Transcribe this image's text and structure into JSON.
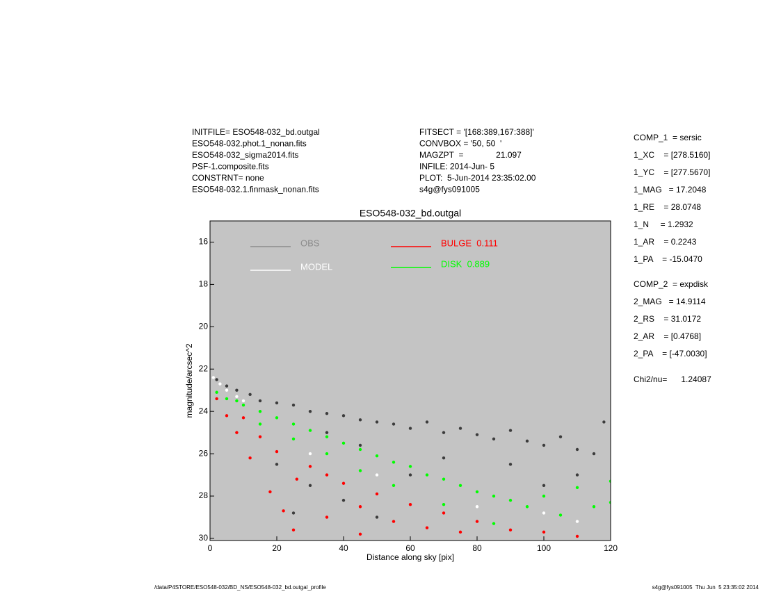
{
  "chart_data": {
    "type": "scatter",
    "title": "ESO548-032_bd.outgal",
    "xlabel": "Distance along sky [pix]",
    "ylabel": "magnitude/arcsec^2",
    "xlim": [
      0,
      120
    ],
    "xticks": [
      0,
      20,
      40,
      60,
      80,
      100,
      120
    ],
    "ylim": [
      30.1,
      15
    ],
    "yticks": [
      16,
      18,
      20,
      22,
      24,
      26,
      28,
      30
    ],
    "background": "#c4c4c4",
    "legend": "top",
    "series": [
      {
        "name": "OBS",
        "color": "#8c8c8c",
        "marker_color": "#3c3c3c",
        "x": [
          2,
          5,
          8,
          12,
          15,
          20,
          25,
          30,
          35,
          40,
          45,
          50,
          55,
          60,
          65,
          70,
          75,
          80,
          85,
          90,
          95,
          100,
          105,
          110,
          115,
          118,
          20,
          30,
          40,
          50,
          25,
          60,
          70,
          90,
          100,
          110,
          45,
          35
        ],
        "values": [
          22.5,
          22.8,
          23.0,
          23.2,
          23.5,
          23.6,
          23.7,
          24.0,
          24.1,
          24.2,
          24.4,
          24.5,
          24.6,
          24.8,
          24.5,
          25.0,
          24.8,
          25.1,
          25.3,
          24.9,
          25.4,
          25.6,
          25.2,
          25.8,
          26.0,
          24.5,
          26.5,
          27.5,
          28.2,
          29.0,
          28.8,
          27.0,
          26.2,
          26.5,
          27.5,
          27.0,
          25.6,
          25.0
        ]
      },
      {
        "name": "MODEL",
        "color": "#ffffff",
        "x": [
          1,
          3,
          5,
          8,
          10,
          30,
          50,
          80,
          100,
          110
        ],
        "values": [
          22.4,
          22.7,
          23.0,
          23.3,
          23.5,
          26.0,
          27.0,
          28.5,
          28.8,
          29.2
        ]
      },
      {
        "name": "BULGE  0.111",
        "color": "#ff0000",
        "x": [
          2,
          5,
          8,
          10,
          12,
          15,
          18,
          20,
          22,
          25,
          26,
          30,
          35,
          40,
          45,
          50,
          55,
          60,
          65,
          70,
          75,
          80,
          90,
          100,
          110,
          35,
          45
        ],
        "values": [
          23.4,
          24.2,
          25.0,
          24.3,
          26.2,
          25.2,
          27.8,
          25.9,
          28.7,
          29.6,
          27.2,
          26.6,
          27.0,
          27.4,
          28.5,
          27.9,
          29.2,
          28.4,
          29.5,
          28.8,
          29.7,
          29.2,
          29.6,
          29.7,
          29.9,
          29.0,
          29.8
        ]
      },
      {
        "name": "DISK  0.889",
        "color": "#00ff00",
        "x": [
          2,
          5,
          8,
          10,
          15,
          15,
          20,
          25,
          25,
          30,
          35,
          35,
          40,
          45,
          45,
          50,
          55,
          55,
          60,
          65,
          70,
          70,
          75,
          80,
          85,
          85,
          90,
          95,
          100,
          105,
          110,
          115,
          120,
          120
        ],
        "values": [
          23.1,
          23.4,
          23.5,
          23.7,
          24.0,
          24.6,
          24.3,
          24.6,
          25.3,
          24.9,
          25.2,
          26.0,
          25.5,
          25.8,
          26.8,
          26.1,
          26.4,
          27.5,
          26.6,
          27.0,
          27.2,
          28.4,
          27.5,
          27.8,
          28.0,
          29.3,
          28.2,
          28.5,
          28.0,
          28.9,
          27.6,
          28.5,
          27.3,
          28.3
        ]
      }
    ]
  },
  "header_left": [
    "INITFILE= ESO548-032_bd.outgal",
    "ESO548-032.phot.1_nonan.fits",
    "ESO548-032_sigma2014.fits",
    "PSF-1.composite.fits",
    "CONSTRNT= none",
    "ESO548-032.1.finmask_nonan.fits"
  ],
  "header_middle": [
    "FITSECT = '[168:389,167:388]'",
    "CONVBOX = '50, 50  '",
    "MAGZPT  =              21.097",
    "INFILE: 2014-Jun- 5",
    "PLOT:  5-Jun-2014 23:35:02.00",
    "s4g@fys091005"
  ],
  "parameters": [
    [
      "COMP_1  = sersic",
      "1_XC    = [278.5160]",
      "1_YC    = [277.5670]",
      "1_MAG   = 17.2048",
      "1_RE    = 28.0748",
      "1_N     = 1.2932",
      "1_AR    = 0.2243",
      "1_PA    = -15.0470"
    ],
    [
      "COMP_2  = expdisk",
      "2_MAG   = 14.9114",
      "2_RS    = 31.0172",
      "2_AR    = [0.4768]",
      "2_PA    = [-47.0030]"
    ],
    [
      "Chi2/nu=      1.24087"
    ]
  ],
  "footer_left": "/data/P4STORE/ESO548-032/BD_NS/ESO548-032_bd.outgal_profile",
  "footer_right": "s4g@fys091005  Thu Jun  5 23:35:02 2014"
}
